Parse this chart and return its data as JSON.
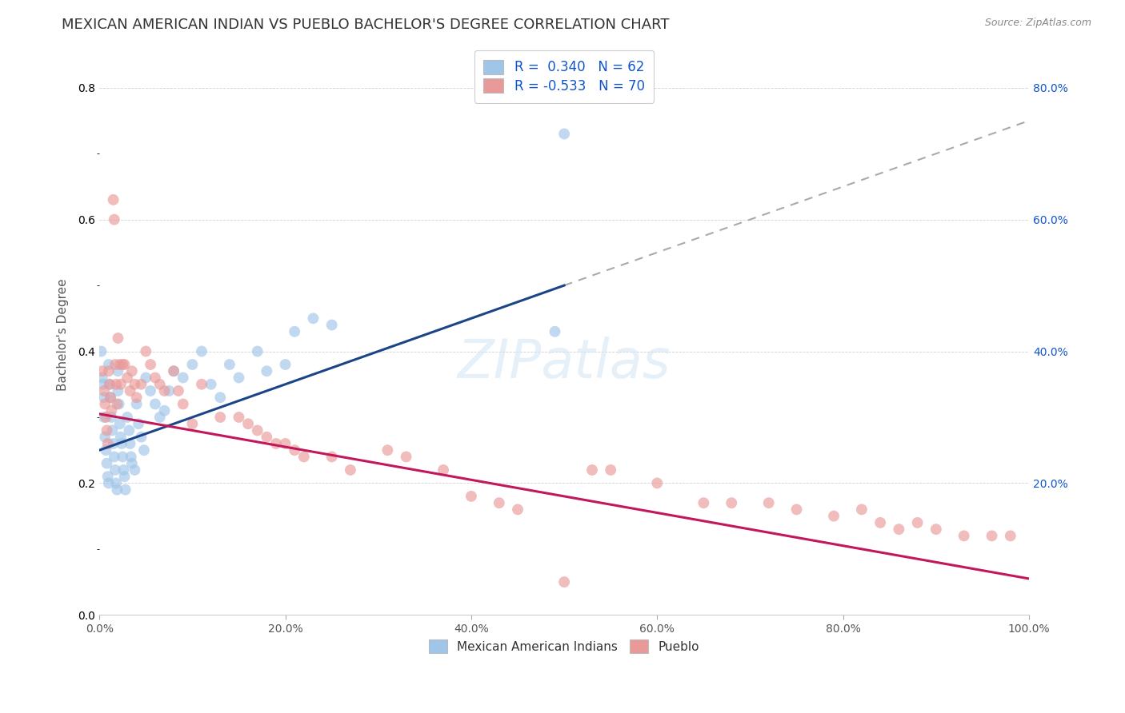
{
  "title": "MEXICAN AMERICAN INDIAN VS PUEBLO BACHELOR'S DEGREE CORRELATION CHART",
  "source": "Source: ZipAtlas.com",
  "ylabel": "Bachelor's Degree",
  "xlim": [
    0,
    1.0
  ],
  "ylim": [
    0,
    0.85
  ],
  "x_ticks": [
    0.0,
    0.2,
    0.4,
    0.6,
    0.8,
    1.0
  ],
  "x_tick_labels": [
    "0.0%",
    "20.0%",
    "40.0%",
    "60.0%",
    "80.0%",
    "100.0%"
  ],
  "y_tick_labels_right": [
    "20.0%",
    "40.0%",
    "60.0%",
    "80.0%"
  ],
  "y_ticks_right": [
    0.2,
    0.4,
    0.6,
    0.8
  ],
  "blue_color": "#9fc5e8",
  "pink_color": "#ea9999",
  "blue_line_color": "#1c4587",
  "pink_line_color": "#c2185b",
  "dashed_line_color": "#aaaaaa",
  "legend_r_blue": "0.340",
  "legend_n_blue": "62",
  "legend_r_pink": "-0.533",
  "legend_n_pink": "70",
  "legend_label_blue": "Mexican American Indians",
  "legend_label_pink": "Pueblo",
  "blue_scatter_x": [
    0.002,
    0.003,
    0.004,
    0.005,
    0.005,
    0.006,
    0.007,
    0.008,
    0.009,
    0.01,
    0.01,
    0.011,
    0.012,
    0.013,
    0.014,
    0.015,
    0.016,
    0.017,
    0.018,
    0.019,
    0.02,
    0.02,
    0.021,
    0.022,
    0.023,
    0.024,
    0.025,
    0.026,
    0.027,
    0.028,
    0.03,
    0.032,
    0.033,
    0.034,
    0.035,
    0.038,
    0.04,
    0.042,
    0.045,
    0.048,
    0.05,
    0.055,
    0.06,
    0.065,
    0.07,
    0.075,
    0.08,
    0.09,
    0.1,
    0.11,
    0.12,
    0.13,
    0.14,
    0.15,
    0.17,
    0.18,
    0.2,
    0.21,
    0.23,
    0.25,
    0.49,
    0.5
  ],
  "blue_scatter_y": [
    0.4,
    0.36,
    0.35,
    0.33,
    0.3,
    0.27,
    0.25,
    0.23,
    0.21,
    0.2,
    0.38,
    0.35,
    0.33,
    0.3,
    0.28,
    0.26,
    0.24,
    0.22,
    0.2,
    0.19,
    0.37,
    0.34,
    0.32,
    0.29,
    0.27,
    0.26,
    0.24,
    0.22,
    0.21,
    0.19,
    0.3,
    0.28,
    0.26,
    0.24,
    0.23,
    0.22,
    0.32,
    0.29,
    0.27,
    0.25,
    0.36,
    0.34,
    0.32,
    0.3,
    0.31,
    0.34,
    0.37,
    0.36,
    0.38,
    0.4,
    0.35,
    0.33,
    0.38,
    0.36,
    0.4,
    0.37,
    0.38,
    0.43,
    0.45,
    0.44,
    0.43,
    0.73
  ],
  "pink_scatter_x": [
    0.003,
    0.005,
    0.006,
    0.007,
    0.008,
    0.009,
    0.01,
    0.011,
    0.012,
    0.013,
    0.015,
    0.016,
    0.017,
    0.018,
    0.019,
    0.02,
    0.022,
    0.023,
    0.025,
    0.027,
    0.03,
    0.033,
    0.035,
    0.038,
    0.04,
    0.045,
    0.05,
    0.055,
    0.06,
    0.065,
    0.07,
    0.08,
    0.085,
    0.09,
    0.1,
    0.11,
    0.13,
    0.15,
    0.16,
    0.17,
    0.18,
    0.19,
    0.2,
    0.21,
    0.22,
    0.25,
    0.27,
    0.31,
    0.33,
    0.37,
    0.4,
    0.43,
    0.45,
    0.5,
    0.53,
    0.55,
    0.6,
    0.65,
    0.68,
    0.72,
    0.75,
    0.79,
    0.82,
    0.84,
    0.86,
    0.88,
    0.9,
    0.93,
    0.96,
    0.98
  ],
  "pink_scatter_y": [
    0.37,
    0.34,
    0.32,
    0.3,
    0.28,
    0.26,
    0.37,
    0.35,
    0.33,
    0.31,
    0.63,
    0.6,
    0.38,
    0.35,
    0.32,
    0.42,
    0.38,
    0.35,
    0.38,
    0.38,
    0.36,
    0.34,
    0.37,
    0.35,
    0.33,
    0.35,
    0.4,
    0.38,
    0.36,
    0.35,
    0.34,
    0.37,
    0.34,
    0.32,
    0.29,
    0.35,
    0.3,
    0.3,
    0.29,
    0.28,
    0.27,
    0.26,
    0.26,
    0.25,
    0.24,
    0.24,
    0.22,
    0.25,
    0.24,
    0.22,
    0.18,
    0.17,
    0.16,
    0.05,
    0.22,
    0.22,
    0.2,
    0.17,
    0.17,
    0.17,
    0.16,
    0.15,
    0.16,
    0.14,
    0.13,
    0.14,
    0.13,
    0.12,
    0.12,
    0.12
  ],
  "blue_line_x0": 0.0,
  "blue_line_x1": 0.5,
  "blue_line_y0": 0.25,
  "blue_line_y1": 0.5,
  "pink_line_x0": 0.0,
  "pink_line_x1": 1.0,
  "pink_line_y0": 0.305,
  "pink_line_y1": 0.055,
  "dash_line_x0": 0.5,
  "dash_line_x1": 1.0,
  "dash_line_y0": 0.5,
  "dash_line_y1": 0.75,
  "watermark": "ZIPatlas",
  "background_color": "#ffffff",
  "title_fontsize": 13,
  "axis_label_fontsize": 11,
  "tick_fontsize": 10,
  "scatter_size": 100,
  "scatter_alpha": 0.65
}
